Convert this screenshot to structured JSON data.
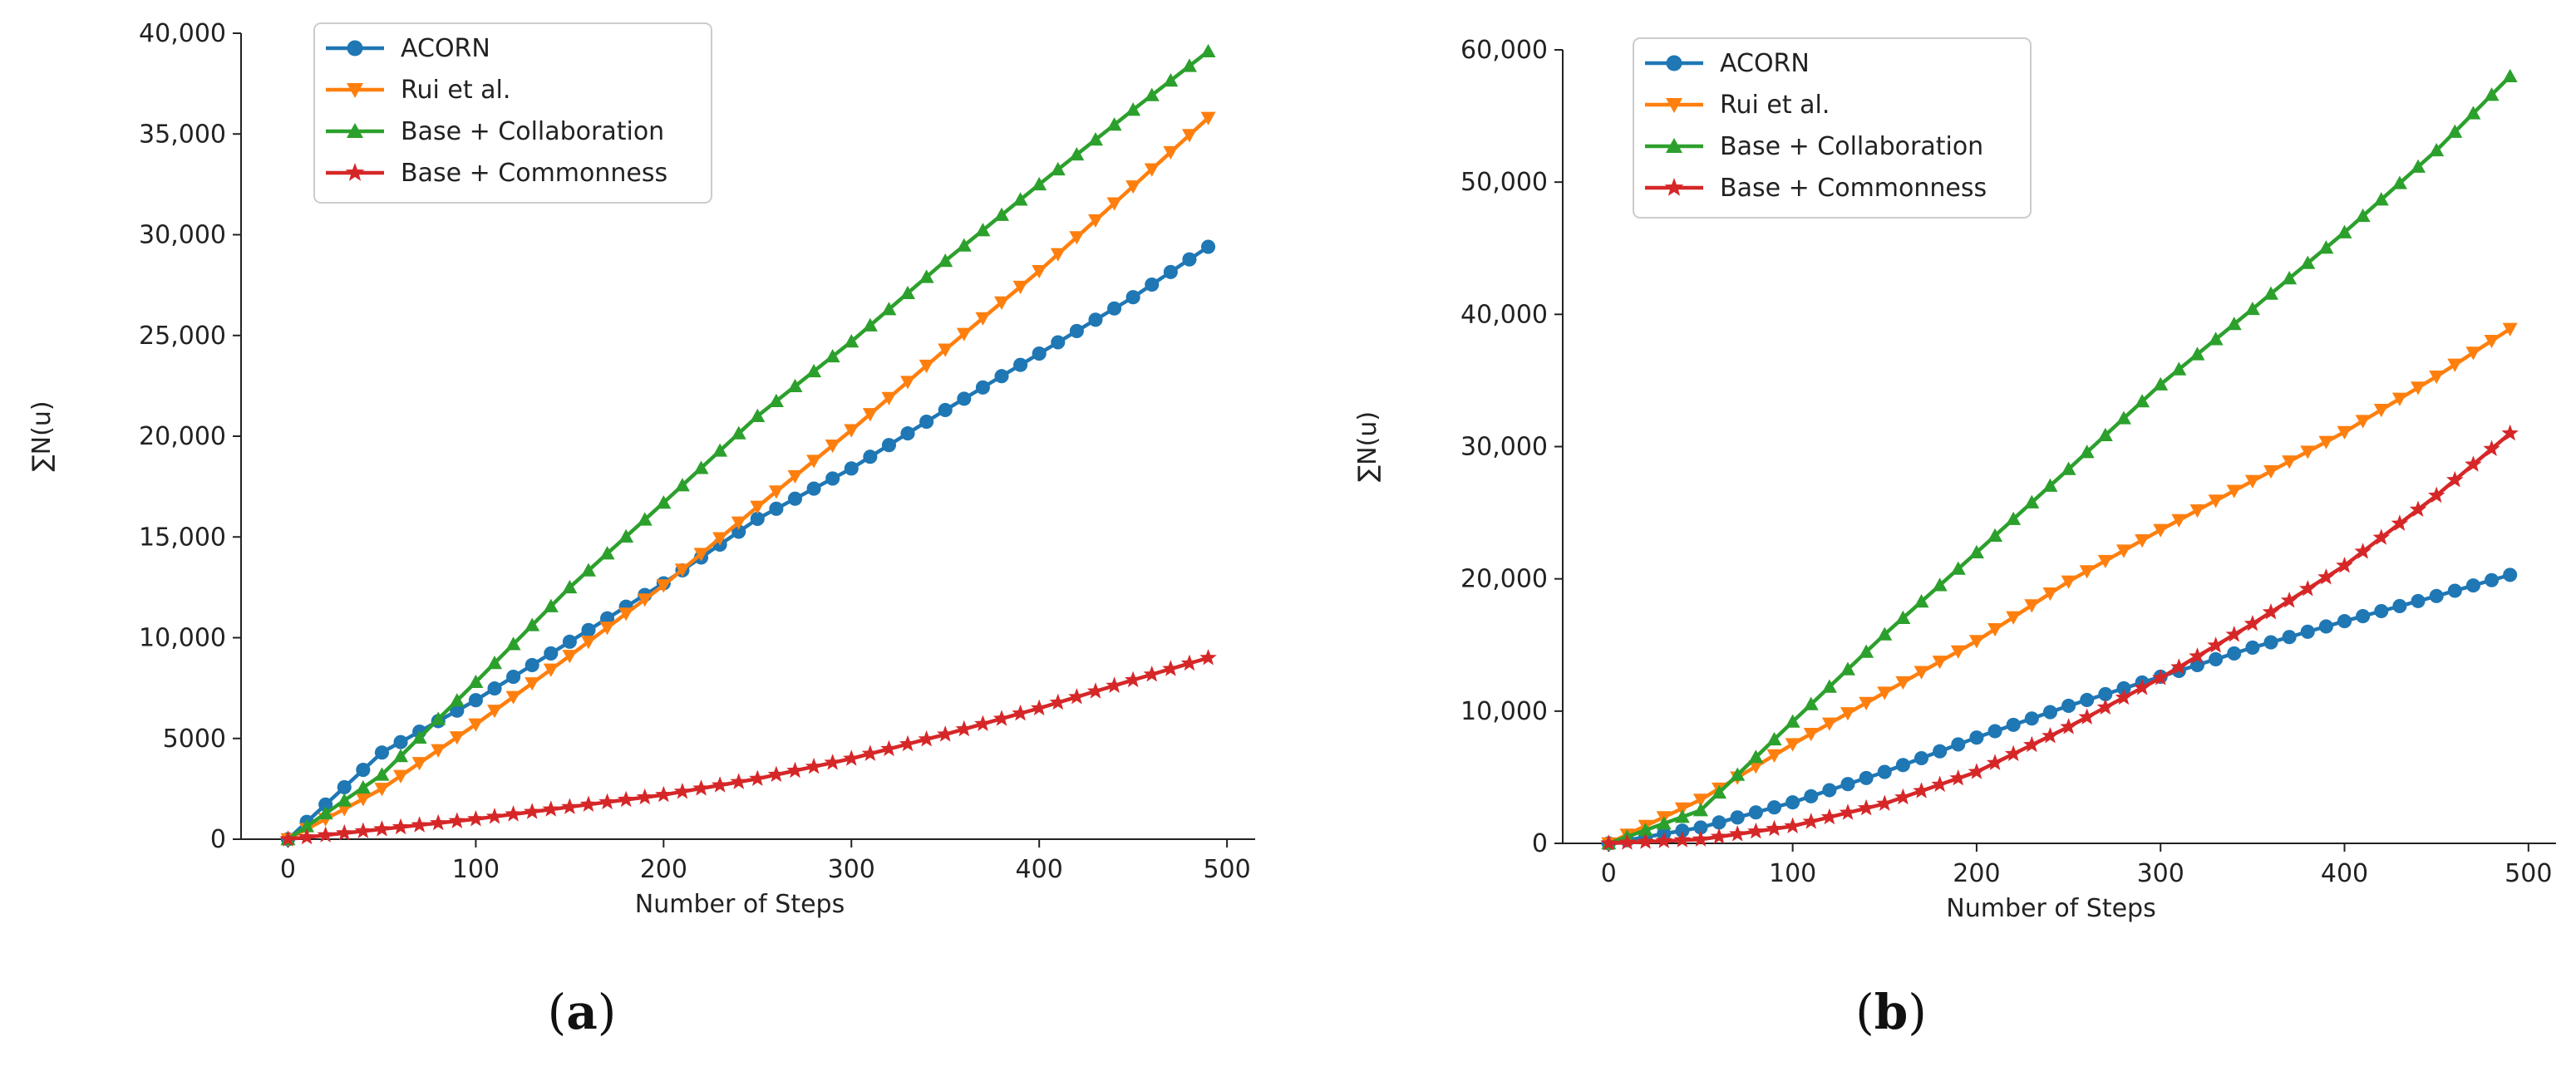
{
  "chart_data": [
    {
      "type": "line",
      "caption_open": "(",
      "caption_letter": "a",
      "caption_close": ")",
      "xlabel": "Number of Steps",
      "ylabel": "∑N(u)",
      "xlim": [
        -25,
        515
      ],
      "ylim": [
        0,
        40000
      ],
      "xticks": [
        0,
        100,
        200,
        300,
        400,
        500
      ],
      "xtick_labels": [
        "0",
        "100",
        "200",
        "300",
        "400",
        "500"
      ],
      "yticks": [
        0,
        5000,
        10000,
        15000,
        20000,
        25000,
        30000,
        35000,
        40000
      ],
      "ytick_labels": [
        "0",
        "5000",
        "10,000",
        "15,000",
        "20,000",
        "25,000",
        "30,000",
        "35,000",
        "40,000"
      ],
      "legend_position": "top-left",
      "series": [
        {
          "name": "ACORN",
          "color": "#1f77b4",
          "marker": "circle",
          "x": [
            0,
            50,
            100,
            150,
            200,
            250,
            300,
            350,
            400,
            450,
            490
          ],
          "y": [
            0,
            4300,
            6900,
            9800,
            12700,
            15900,
            18400,
            21300,
            24100,
            26900,
            29400
          ]
        },
        {
          "name": "Rui et al.",
          "color": "#ff7f0e",
          "marker": "triangle-down",
          "x": [
            0,
            50,
            100,
            150,
            200,
            250,
            300,
            350,
            400,
            450,
            490
          ],
          "y": [
            0,
            2500,
            5700,
            9100,
            12600,
            16500,
            20300,
            24300,
            28200,
            32400,
            35800
          ]
        },
        {
          "name": "Base + Collaboration",
          "color": "#2ca02c",
          "marker": "triangle-up",
          "x": [
            0,
            50,
            100,
            150,
            200,
            250,
            300,
            350,
            400,
            450,
            490
          ],
          "y": [
            0,
            3200,
            7800,
            12500,
            16700,
            21000,
            24700,
            28700,
            32500,
            36200,
            39100
          ]
        },
        {
          "name": "Base + Commonness",
          "color": "#d62728",
          "marker": "star",
          "x": [
            0,
            50,
            100,
            150,
            200,
            250,
            300,
            350,
            400,
            450,
            490
          ],
          "y": [
            0,
            500,
            1000,
            1600,
            2200,
            3000,
            4000,
            5200,
            6500,
            7900,
            9000
          ]
        }
      ]
    },
    {
      "type": "line",
      "caption_open": "(",
      "caption_letter": "b",
      "caption_close": ")",
      "xlabel": "Number of Steps",
      "ylabel": "∑N(u)",
      "xlim": [
        -25,
        515
      ],
      "ylim": [
        0,
        60000
      ],
      "xticks": [
        0,
        100,
        200,
        300,
        400,
        500
      ],
      "xtick_labels": [
        "0",
        "100",
        "200",
        "300",
        "400",
        "500"
      ],
      "yticks": [
        0,
        10000,
        20000,
        30000,
        40000,
        50000,
        60000
      ],
      "ytick_labels": [
        "0",
        "10,000",
        "20,000",
        "30,000",
        "40,000",
        "50,000",
        "60,000"
      ],
      "legend_position": "top-left",
      "series": [
        {
          "name": "ACORN",
          "color": "#1f77b4",
          "marker": "circle",
          "x": [
            0,
            50,
            100,
            150,
            200,
            250,
            300,
            350,
            400,
            450,
            490
          ],
          "y": [
            0,
            1200,
            3100,
            5400,
            8000,
            10400,
            12600,
            14800,
            16800,
            18700,
            20300
          ]
        },
        {
          "name": "Rui et al.",
          "color": "#ff7f0e",
          "marker": "triangle-down",
          "x": [
            0,
            50,
            100,
            150,
            200,
            250,
            300,
            350,
            400,
            450,
            490
          ],
          "y": [
            0,
            3300,
            7500,
            11400,
            15300,
            19800,
            23700,
            27400,
            31100,
            35300,
            38900
          ]
        },
        {
          "name": "Base + Collaboration",
          "color": "#2ca02c",
          "marker": "triangle-up",
          "x": [
            0,
            50,
            100,
            150,
            200,
            250,
            300,
            350,
            400,
            450,
            490
          ],
          "y": [
            0,
            2500,
            9200,
            15800,
            22000,
            28300,
            34700,
            40400,
            46200,
            52400,
            58000
          ]
        },
        {
          "name": "Base + Commonness",
          "color": "#d62728",
          "marker": "star",
          "x": [
            0,
            50,
            100,
            150,
            200,
            250,
            300,
            350,
            400,
            450,
            490
          ],
          "y": [
            0,
            300,
            1300,
            3000,
            5400,
            8800,
            12500,
            16600,
            21000,
            26300,
            31000
          ]
        }
      ]
    }
  ]
}
